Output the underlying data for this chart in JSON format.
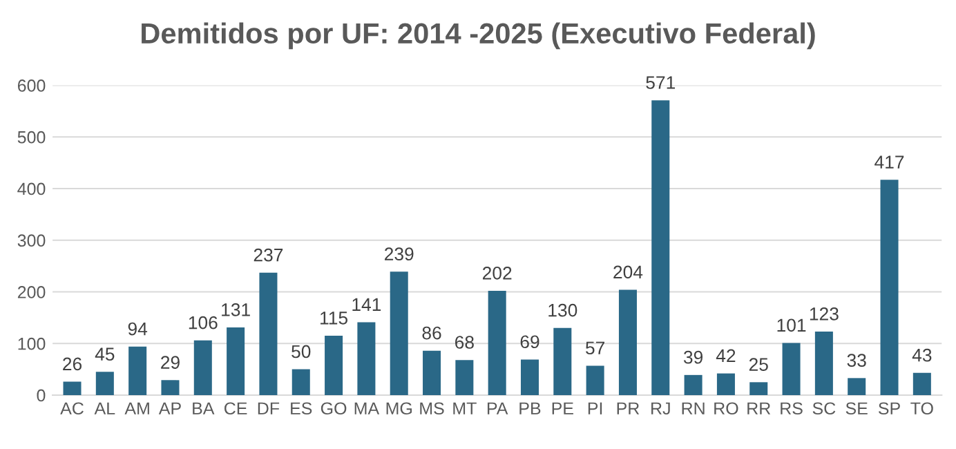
{
  "chart_data": {
    "type": "bar",
    "title": "Demitidos por UF: 2014 -2025 (Executivo Federal)",
    "categories": [
      "AC",
      "AL",
      "AM",
      "AP",
      "BA",
      "CE",
      "DF",
      "ES",
      "GO",
      "MA",
      "MG",
      "MS",
      "MT",
      "PA",
      "PB",
      "PE",
      "PI",
      "PR",
      "RJ",
      "RN",
      "RO",
      "RR",
      "RS",
      "SC",
      "SE",
      "SP",
      "TO"
    ],
    "values": [
      26,
      45,
      94,
      29,
      106,
      131,
      237,
      50,
      115,
      141,
      239,
      86,
      68,
      202,
      69,
      130,
      57,
      204,
      571,
      39,
      42,
      25,
      101,
      123,
      33,
      417,
      43
    ],
    "color": "#2a6887",
    "ylim": [
      0,
      600
    ],
    "yticks": [
      0,
      100,
      200,
      300,
      400,
      500,
      600
    ],
    "grid": "y",
    "data_labels": true
  }
}
